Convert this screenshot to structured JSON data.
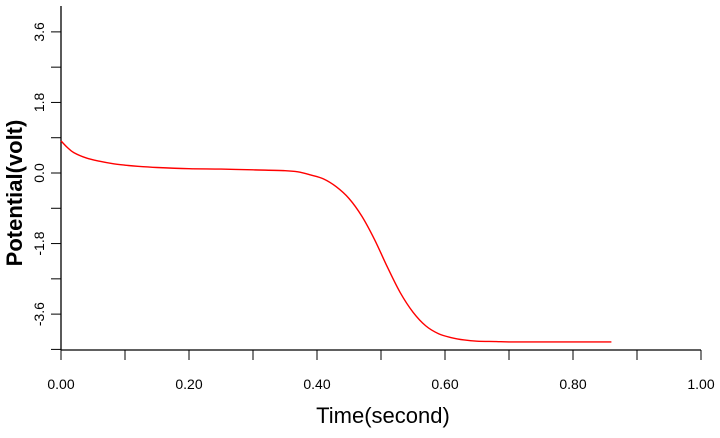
{
  "chart_data": {
    "type": "line",
    "title": "",
    "xlabel": "Time(second)",
    "ylabel": "Potential(volt)",
    "xlim": [
      0.0,
      1.0
    ],
    "ylim": [
      -4.5,
      4.2
    ],
    "x_tick_labels": [
      "0.00",
      "0.20",
      "0.40",
      "0.60",
      "0.80",
      "1.00"
    ],
    "x_tick_values": [
      0.0,
      0.2,
      0.4,
      0.6,
      0.8,
      1.0
    ],
    "y_tick_labels": [
      "3.6",
      "1.8",
      "0.0",
      "-1.8",
      "-3.6"
    ],
    "y_tick_values": [
      3.6,
      1.8,
      0.0,
      -1.8,
      -3.6
    ],
    "grid": false,
    "series": [
      {
        "color": "#ff0000",
        "x": [
          0.0,
          0.01,
          0.02,
          0.04,
          0.06,
          0.08,
          0.1,
          0.12,
          0.15,
          0.2,
          0.25,
          0.3,
          0.35,
          0.37,
          0.39,
          0.41,
          0.43,
          0.45,
          0.47,
          0.49,
          0.51,
          0.53,
          0.55,
          0.57,
          0.59,
          0.61,
          0.63,
          0.65,
          0.68,
          0.7,
          0.75,
          0.8,
          0.86
        ],
        "y": [
          0.82,
          0.65,
          0.52,
          0.38,
          0.3,
          0.24,
          0.2,
          0.17,
          0.14,
          0.11,
          0.1,
          0.08,
          0.06,
          0.03,
          -0.05,
          -0.15,
          -0.35,
          -0.65,
          -1.1,
          -1.7,
          -2.4,
          -3.05,
          -3.55,
          -3.9,
          -4.1,
          -4.2,
          -4.26,
          -4.29,
          -4.3,
          -4.31,
          -4.31,
          -4.31,
          -4.31
        ]
      }
    ]
  }
}
